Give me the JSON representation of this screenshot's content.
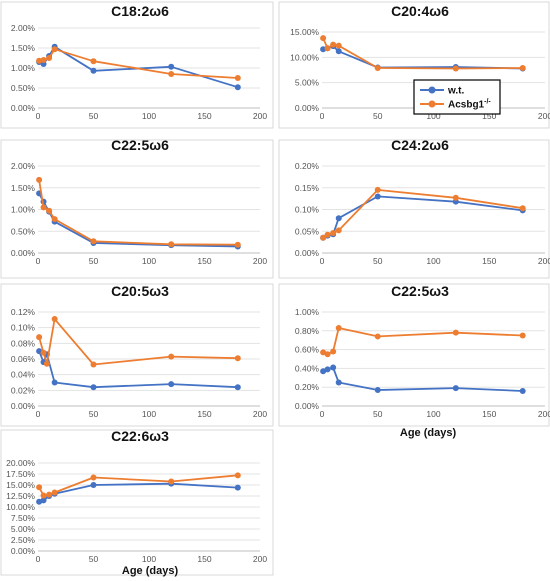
{
  "legend": {
    "entries": [
      {
        "label": "w.t.",
        "color": "#4472C4"
      },
      {
        "label": "Acsbg1",
        "sup": "-/-",
        "color": "#ED7D31"
      }
    ]
  },
  "x_axis_label": "Age (days)",
  "chart_data": [
    {
      "type": "line",
      "title": "C18:2ω6",
      "x": [
        1,
        5,
        10,
        15,
        50,
        120,
        180
      ],
      "series": [
        {
          "name": "w.t.",
          "color": "#4472C4",
          "values": [
            1.15,
            1.1,
            1.3,
            1.53,
            0.93,
            1.03,
            0.52
          ]
        },
        {
          "name": "Acsbg1-/-",
          "color": "#ED7D31",
          "values": [
            1.18,
            1.2,
            1.25,
            1.47,
            1.17,
            0.85,
            0.75
          ]
        }
      ],
      "xlim": [
        0,
        200
      ],
      "xticks": [
        "0",
        "50",
        "100",
        "150",
        "200"
      ],
      "ylim": [
        0,
        2
      ],
      "yticks": [
        "0.00%",
        "0.50%",
        "1.00%",
        "1.50%",
        "2.00%"
      ],
      "grid": true
    },
    {
      "type": "line",
      "title": "C20:4ω6",
      "x": [
        1,
        5,
        10,
        15,
        50,
        120,
        180
      ],
      "series": [
        {
          "name": "w.t.",
          "color": "#4472C4",
          "values": [
            11.6,
            11.8,
            12.2,
            11.2,
            8.0,
            8.1,
            7.8
          ]
        },
        {
          "name": "Acsbg1-/-",
          "color": "#ED7D31",
          "values": [
            13.8,
            11.8,
            12.5,
            12.3,
            7.9,
            7.8,
            7.9
          ]
        }
      ],
      "xlim": [
        0,
        200
      ],
      "xticks": [
        "0",
        "50",
        "100",
        "150",
        "200"
      ],
      "ylim": [
        0,
        15
      ],
      "yticks": [
        "0.00%",
        "5.00%",
        "10.00%",
        "15.00%"
      ],
      "grid": true,
      "legend_position": "right"
    },
    {
      "type": "line",
      "title": "C22:5ω6",
      "x": [
        1,
        5,
        10,
        15,
        50,
        120,
        180
      ],
      "series": [
        {
          "name": "w.t.",
          "color": "#4472C4",
          "values": [
            1.37,
            1.18,
            0.95,
            0.72,
            0.23,
            0.18,
            0.15
          ]
        },
        {
          "name": "Acsbg1-/-",
          "color": "#ED7D31",
          "values": [
            1.68,
            1.05,
            0.97,
            0.78,
            0.27,
            0.2,
            0.19
          ]
        }
      ],
      "xlim": [
        0,
        200
      ],
      "xticks": [
        "0",
        "50",
        "100",
        "150",
        "200"
      ],
      "ylim": [
        0,
        2
      ],
      "yticks": [
        "0.00%",
        "0.50%",
        "1.00%",
        "1.50%",
        "2.00%"
      ],
      "grid": true
    },
    {
      "type": "line",
      "title": "C24:2ω6",
      "x": [
        1,
        5,
        10,
        15,
        50,
        120,
        180
      ],
      "series": [
        {
          "name": "w.t.",
          "color": "#4472C4",
          "values": [
            0.035,
            0.04,
            0.043,
            0.08,
            0.13,
            0.118,
            0.098
          ]
        },
        {
          "name": "Acsbg1-/-",
          "color": "#ED7D31",
          "values": [
            0.035,
            0.042,
            0.046,
            0.052,
            0.145,
            0.127,
            0.103
          ]
        }
      ],
      "xlim": [
        0,
        200
      ],
      "xticks": [
        "0",
        "50",
        "100",
        "150",
        "200"
      ],
      "ylim": [
        0,
        0.2
      ],
      "yticks": [
        "0.00%",
        "0.05%",
        "0.10%",
        "0.15%",
        "0.20%"
      ],
      "grid": true
    },
    {
      "type": "line",
      "title": "C20:5ω3",
      "x": [
        1,
        5,
        8,
        15,
        50,
        120,
        180
      ],
      "series": [
        {
          "name": "w.t.",
          "color": "#4472C4",
          "values": [
            0.07,
            0.056,
            0.066,
            0.03,
            0.024,
            0.028,
            0.024
          ]
        },
        {
          "name": "Acsbg1-/-",
          "color": "#ED7D31",
          "values": [
            0.088,
            0.068,
            0.054,
            0.111,
            0.053,
            0.063,
            0.061
          ]
        }
      ],
      "xlim": [
        0,
        200
      ],
      "xticks": [
        "0",
        "50",
        "100",
        "150",
        "200"
      ],
      "ylim": [
        0,
        0.12
      ],
      "yticks": [
        "0.00%",
        "0.02%",
        "0.04%",
        "0.06%",
        "0.08%",
        "0.10%",
        "0.12%"
      ],
      "grid": true
    },
    {
      "type": "line",
      "title": "C22:5ω3",
      "x": [
        1,
        5,
        10,
        15,
        50,
        120,
        180
      ],
      "series": [
        {
          "name": "w.t.",
          "color": "#4472C4",
          "values": [
            0.37,
            0.39,
            0.41,
            0.25,
            0.17,
            0.19,
            0.16
          ]
        },
        {
          "name": "Acsbg1-/-",
          "color": "#ED7D31",
          "values": [
            0.57,
            0.55,
            0.58,
            0.83,
            0.74,
            0.78,
            0.75
          ]
        }
      ],
      "xlim": [
        0,
        200
      ],
      "xticks": [
        "0",
        "50",
        "100",
        "150",
        "200"
      ],
      "ylim": [
        0,
        1
      ],
      "yticks": [
        "0.00%",
        "0.20%",
        "0.40%",
        "0.60%",
        "0.80%",
        "1.00%"
      ],
      "grid": true
    },
    {
      "type": "line",
      "title": "C22:6ω3",
      "x": [
        1,
        5,
        10,
        15,
        50,
        120,
        180
      ],
      "series": [
        {
          "name": "w.t.",
          "color": "#4472C4",
          "values": [
            11.2,
            11.5,
            12.5,
            13.0,
            15.0,
            15.3,
            14.4
          ]
        },
        {
          "name": "Acsbg1-/-",
          "color": "#ED7D31",
          "values": [
            14.5,
            12.6,
            12.8,
            13.3,
            16.7,
            15.8,
            17.2
          ]
        }
      ],
      "xlim": [
        0,
        200
      ],
      "xticks": [
        "0",
        "50",
        "100",
        "150",
        "200"
      ],
      "ylim": [
        0,
        20
      ],
      "yticks": [
        "0.00%",
        "2.50%",
        "5.00%",
        "7.50%",
        "10.00%",
        "12.50%",
        "15.00%",
        "17.50%",
        "20.00%"
      ],
      "grid": true
    }
  ]
}
